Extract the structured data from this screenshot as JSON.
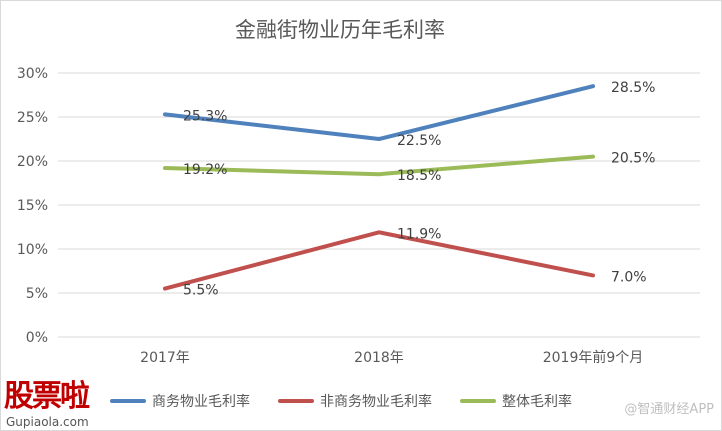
{
  "chart_data": {
    "type": "line",
    "title": "金融街物业历年毛利率",
    "categories": [
      "2017年",
      "2018年",
      "2019年前9个月"
    ],
    "ylim": [
      0,
      30
    ],
    "yticks": [
      "0%",
      "5%",
      "10%",
      "15%",
      "20%",
      "25%",
      "30%"
    ],
    "ytick_values": [
      0,
      5,
      10,
      15,
      20,
      25,
      30
    ],
    "grid": true,
    "legend_position": "bottom",
    "series": [
      {
        "name": "商务物业毛利率",
        "color": "#4f81bd",
        "values": [
          25.3,
          22.5,
          28.5
        ],
        "labels": [
          "25.3%",
          "22.5%",
          "28.5%"
        ]
      },
      {
        "name": "非商务物业毛利率",
        "color": "#c0504d",
        "values": [
          5.5,
          11.9,
          7.0
        ],
        "labels": [
          "5.5%",
          "11.9%",
          "7.0%"
        ]
      },
      {
        "name": "整体毛利率",
        "color": "#9bbb59",
        "values": [
          19.2,
          18.5,
          20.5
        ],
        "labels": [
          "19.2%",
          "18.5%",
          "20.5%"
        ]
      }
    ]
  },
  "watermarks": {
    "logo_top": "股票啦",
    "logo_bottom": "Gupiaola.com",
    "right": "@智通财经APP"
  }
}
